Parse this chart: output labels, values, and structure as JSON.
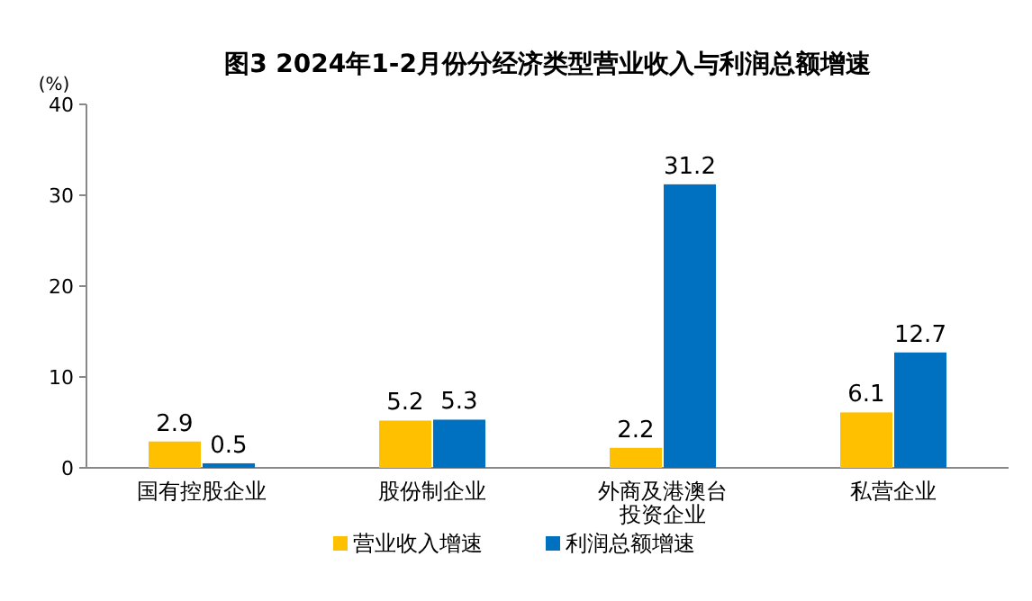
{
  "chart_data": {
    "type": "bar",
    "title": "图3 2024年1-2月份分经济类型营业收入与利润总额增速",
    "ylabel": "(%)",
    "categories": [
      "国有控股企业",
      "股份制企业",
      "外商及港澳台投资企业",
      "私营企业"
    ],
    "series": [
      {
        "name": "营业收入增速",
        "color": "#ffc000",
        "values": [
          2.9,
          5.2,
          2.2,
          6.1
        ]
      },
      {
        "name": "利润总额增速",
        "color": "#0070c0",
        "values": [
          0.5,
          5.3,
          31.2,
          12.7
        ]
      }
    ],
    "ylim": [
      0,
      40
    ],
    "yticks": [
      0,
      10,
      20,
      30,
      40
    ],
    "data_labels": true,
    "legend": "bottom",
    "grid": false
  }
}
